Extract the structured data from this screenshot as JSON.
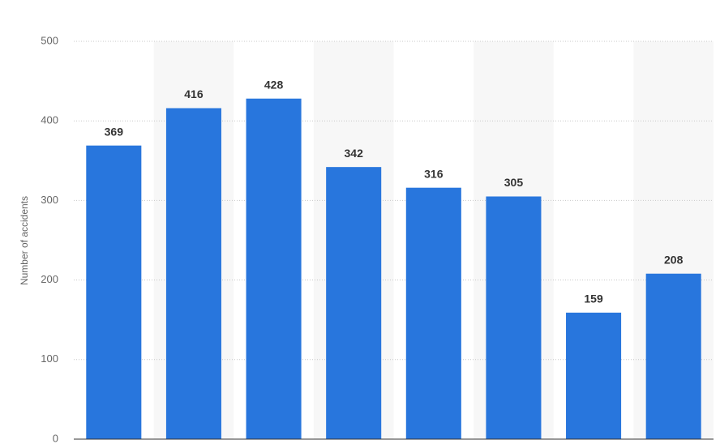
{
  "chart_data": {
    "type": "bar",
    "y_axis_label": "Number of accidents",
    "categories": [
      null,
      null,
      null,
      null,
      null,
      null,
      null,
      null
    ],
    "values": [
      369,
      416,
      428,
      342,
      316,
      305,
      159,
      208
    ],
    "color": "#2876dd",
    "ylim": [
      0,
      500
    ],
    "yticks": [
      0,
      100,
      200,
      300,
      400,
      500
    ],
    "grid": true
  }
}
